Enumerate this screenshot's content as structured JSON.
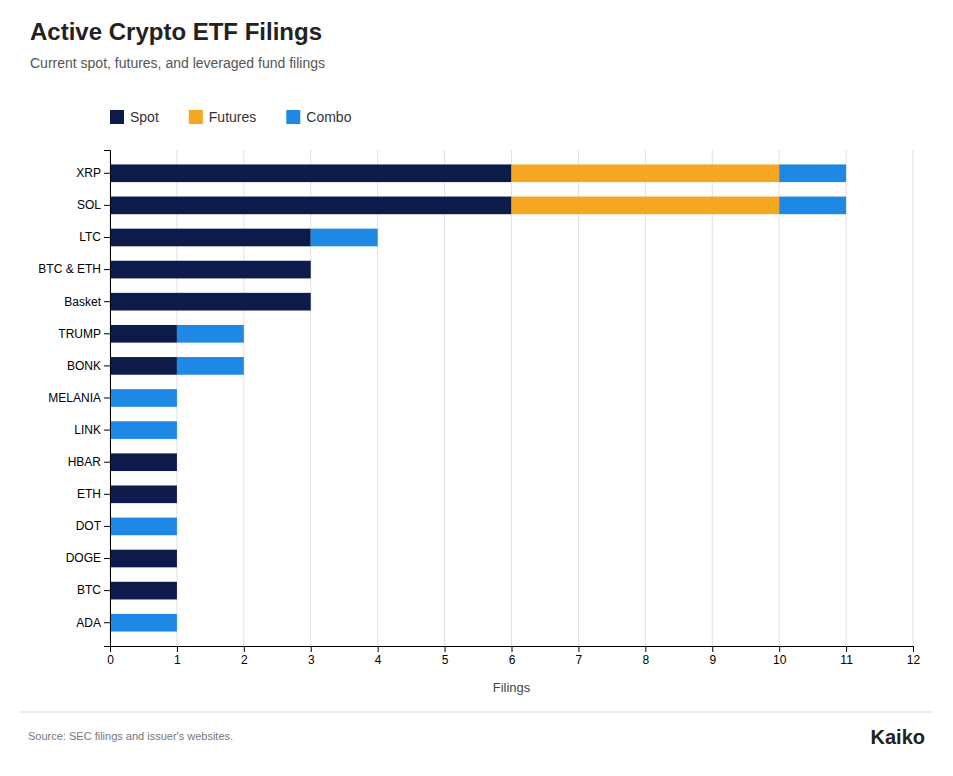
{
  "chart_data": {
    "type": "bar",
    "orientation": "horizontal",
    "stacked": true,
    "title": "Active Crypto ETF Filings",
    "subtitle": "Current spot, futures, and leveraged fund filings",
    "xlabel": "Filings",
    "categories": [
      "ADA",
      "BTC",
      "DOGE",
      "DOT",
      "ETH",
      "HBAR",
      "LINK",
      "MELANIA",
      "BONK",
      "TRUMP",
      "Basket",
      "BTC & ETH",
      "LTC",
      "SOL",
      "XRP"
    ],
    "series": [
      {
        "name": "Spot",
        "color": "#0d1b4b",
        "values": [
          0,
          1,
          1,
          0,
          1,
          1,
          0,
          0,
          1,
          1,
          3,
          3,
          3,
          6,
          6
        ]
      },
      {
        "name": "Futures",
        "color": "#f5a623",
        "values": [
          0,
          0,
          0,
          0,
          0,
          0,
          0,
          0,
          0,
          0,
          0,
          0,
          0,
          4,
          4
        ]
      },
      {
        "name": "Combo",
        "color": "#1e88e5",
        "values": [
          1,
          0,
          0,
          1,
          0,
          0,
          1,
          1,
          1,
          1,
          0,
          0,
          1,
          1,
          1
        ]
      }
    ],
    "xlim": [
      0,
      12
    ],
    "xticks": [
      0,
      1,
      2,
      3,
      4,
      5,
      6,
      7,
      8,
      9,
      10,
      11,
      12
    ],
    "grid": true,
    "legend": "top-left",
    "annotations": [
      "Source: SEC filings and issuer's websites.",
      "Kaiko"
    ]
  }
}
